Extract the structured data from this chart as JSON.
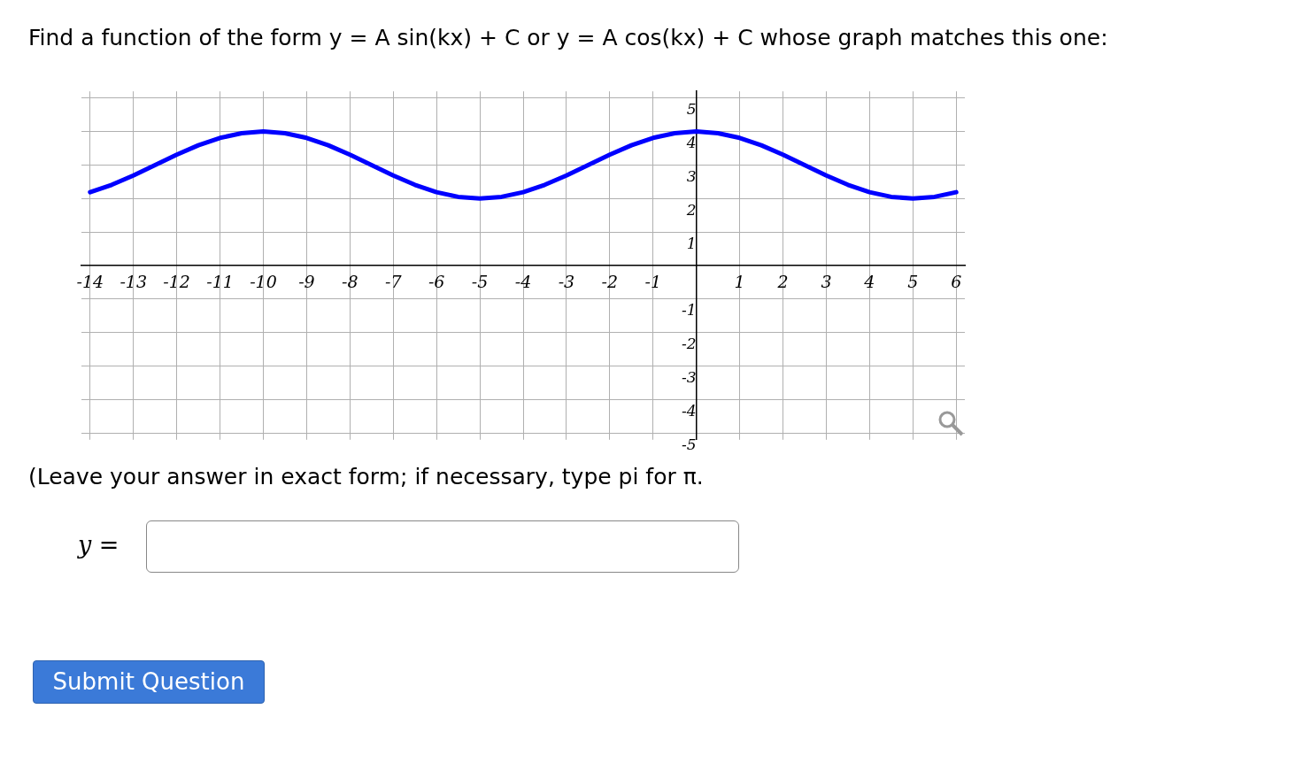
{
  "chart_data": {
    "type": "line",
    "title": "Find a function of the form  y = A sin(kx) + C or  y = A cos(kx) + C whose graph matches this one:",
    "annotations": [
      "(Leave your answer in exact form; if necessary, type pi for π.",
      "y =",
      "Submit Question"
    ],
    "x": [
      -14,
      -13.5,
      -13,
      -12.5,
      -12,
      -11.5,
      -11,
      -10.5,
      -10,
      -9.5,
      -9,
      -8.5,
      -8,
      -7.5,
      -7,
      -6.5,
      -6,
      -5.5,
      -5,
      -4.5,
      -4,
      -3.5,
      -3,
      -2.5,
      -2,
      -1.5,
      -1,
      -0.5,
      0,
      0.5,
      1,
      1.5,
      2,
      2.5,
      3,
      3.5,
      4,
      4.5,
      5,
      5.5,
      6
    ],
    "series": [
      {
        "color": "#0000ff",
        "values": [
          2.19,
          2.41,
          2.69,
          3,
          3.31,
          3.59,
          3.81,
          3.95,
          4,
          3.95,
          3.81,
          3.59,
          3.31,
          3,
          2.69,
          2.41,
          2.19,
          2.05,
          2,
          2.05,
          2.19,
          2.41,
          2.69,
          3,
          3.31,
          3.59,
          3.81,
          3.95,
          4,
          3.95,
          3.81,
          3.59,
          3.31,
          3,
          2.69,
          2.41,
          2.19,
          2.05,
          2,
          2.05,
          2.19
        ]
      }
    ],
    "xlim": [
      -14.2,
      6.2
    ],
    "ylim": [
      -5.2,
      5.2
    ],
    "xticks": [
      -14,
      -13,
      -12,
      -11,
      -10,
      -9,
      -8,
      -7,
      -6,
      -5,
      -4,
      -3,
      -2,
      -1,
      1,
      2,
      3,
      4,
      5,
      6
    ],
    "yticks": [
      -5,
      -4,
      -3,
      -2,
      -1,
      1,
      2,
      3,
      4,
      5
    ],
    "grid": true,
    "marker": "none",
    "line_style": "solid",
    "legend": false
  }
}
